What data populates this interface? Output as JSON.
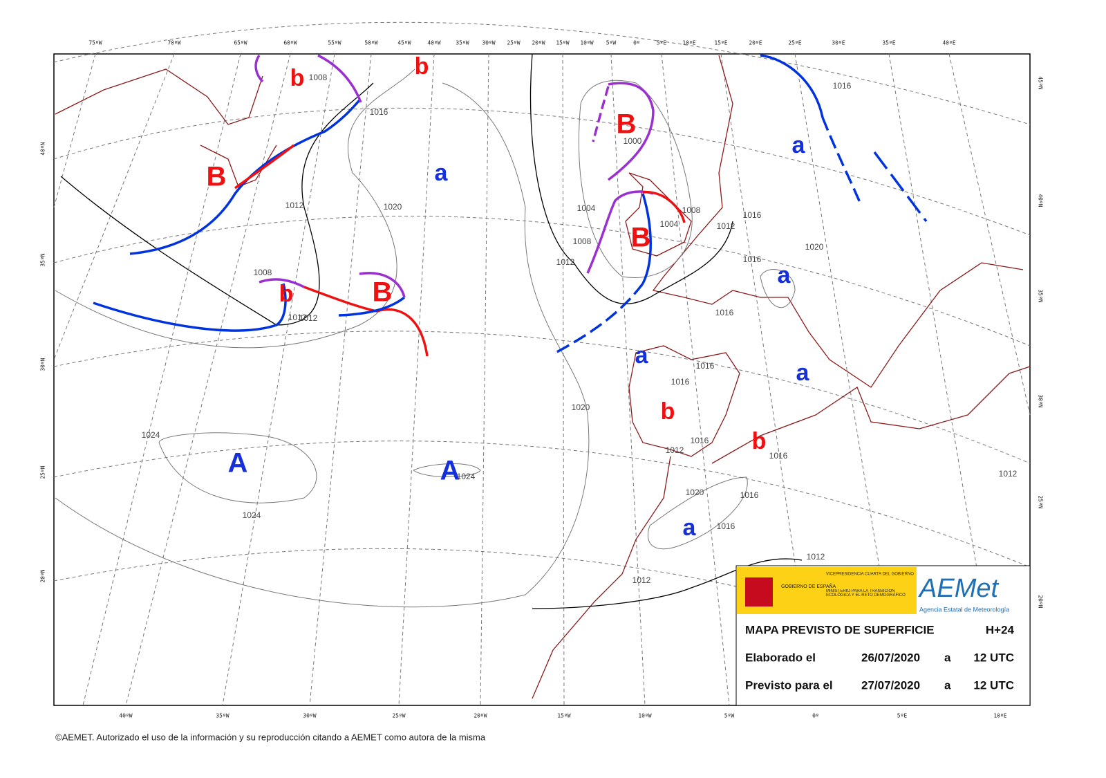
{
  "top_longitudes": [
    "75ºW",
    "70ºW",
    "65ºW",
    "60ºW",
    "55ºW",
    "50ºW",
    "45ºW",
    "40ºW",
    "35ºW",
    "30ºW",
    "25ºW",
    "20ºW",
    "15ºW",
    "10ºW",
    "5ºW",
    "0º",
    "5ºE",
    "10ºE",
    "15ºE",
    "20ºE",
    "25ºE",
    "30ºE",
    "35ºE",
    "40ºE"
  ],
  "bottom_longitudes": [
    "40ºW",
    "35ºW",
    "30ºW",
    "25ºW",
    "20ºW",
    "15ºW",
    "10ºW",
    "5ºW",
    "0º",
    "5ºE",
    "10ºE"
  ],
  "left_latitudes": [
    "40ºN",
    "35ºN",
    "30ºN",
    "25ºN",
    "20ºN"
  ],
  "right_latitudes": [
    "45ºN",
    "40ºN",
    "35ºN",
    "30ºN",
    "25ºN",
    "20ºN"
  ],
  "pressure_centers": [
    {
      "label": "A",
      "kind": "high"
    },
    {
      "label": "A",
      "kind": "high"
    },
    {
      "label": "a",
      "kind": "high"
    },
    {
      "label": "a",
      "kind": "high"
    },
    {
      "label": "a",
      "kind": "high"
    },
    {
      "label": "a",
      "kind": "high"
    },
    {
      "label": "a",
      "kind": "high"
    },
    {
      "label": "a",
      "kind": "high"
    },
    {
      "label": "B",
      "kind": "low"
    },
    {
      "label": "B",
      "kind": "low"
    },
    {
      "label": "B",
      "kind": "low"
    },
    {
      "label": "B",
      "kind": "low"
    },
    {
      "label": "b",
      "kind": "low"
    },
    {
      "label": "b",
      "kind": "low"
    },
    {
      "label": "b",
      "kind": "low"
    },
    {
      "label": "b",
      "kind": "low"
    },
    {
      "label": "b",
      "kind": "low"
    }
  ],
  "isobar_labels": [
    "1012",
    "1008",
    "1016",
    "1012",
    "1020",
    "1008",
    "1012",
    "1024",
    "1024",
    "1024",
    "1020",
    "1004",
    "1008",
    "1012",
    "1000",
    "1004",
    "1008",
    "1012",
    "1016",
    "1016",
    "1016",
    "1020",
    "1016",
    "1016",
    "1016",
    "1012",
    "1016",
    "1016",
    "1012",
    "1012",
    "1020",
    "1016",
    "1016",
    "1012"
  ],
  "government": {
    "name": "GOBIERNO DE ESPAÑA",
    "office": "VICEPRESIDENCIA CUARTA DEL GOBIERNO",
    "ministry": "MINISTERIO PARA LA TRANSICIÓN ECOLÓGICA Y EL RETO DEMOGRÁFICO"
  },
  "logo": {
    "name": "AEMet",
    "subtitle": "Agencia Estatal de Meteorología"
  },
  "info_box": {
    "title": "MAPA PREVISTO DE SUPERFICIE",
    "forecast_hour": "H+24",
    "made_label": "Elaborado el",
    "made_date": "26/07/2020",
    "made_at": "a",
    "made_time": "12 UTC",
    "valid_label": "Previsto para el",
    "valid_date": "27/07/2020",
    "valid_at": "a",
    "valid_time": "12 UTC"
  },
  "copyright": "©AEMET. Autorizado el uso de la información y su reproducción citando a AEMET como autora de la misma"
}
